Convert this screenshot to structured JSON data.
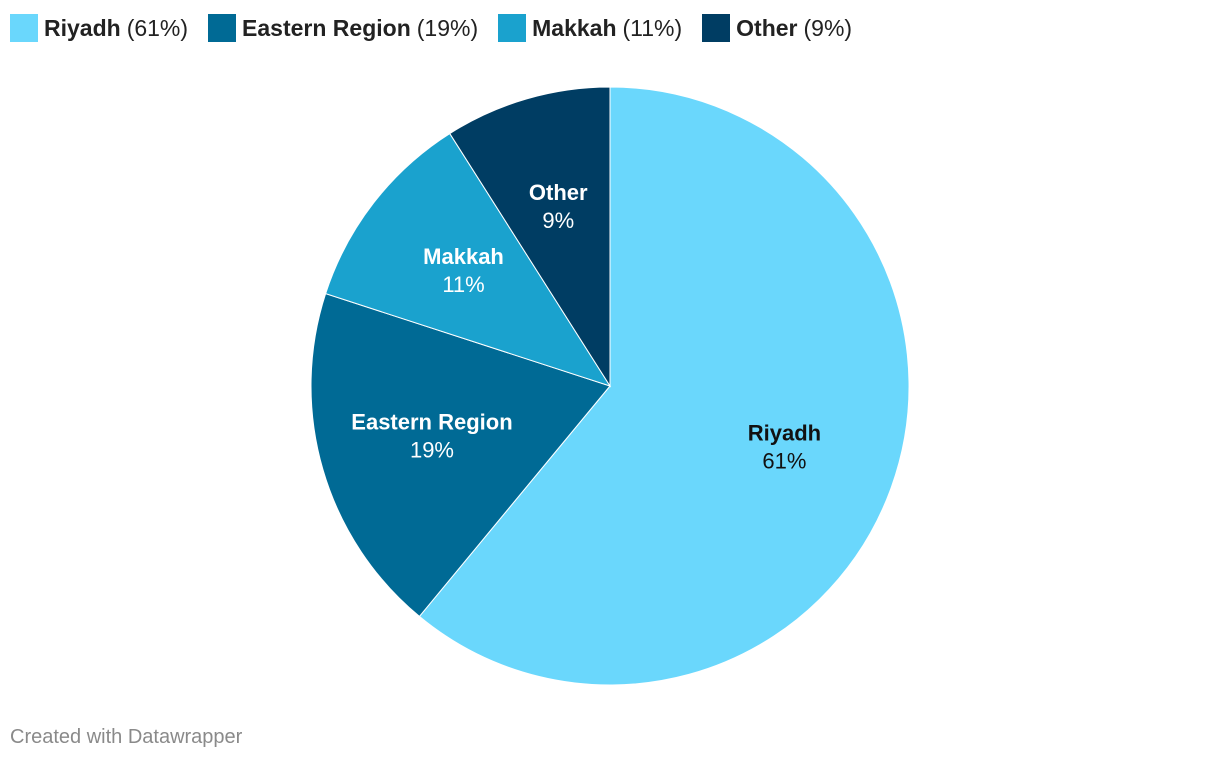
{
  "chart_data": {
    "type": "pie",
    "categories": [
      "Riyadh",
      "Eastern Region",
      "Makkah",
      "Other"
    ],
    "values": [
      61,
      19,
      11,
      9
    ],
    "value_labels": [
      "61%",
      "19%",
      "11%",
      "9%"
    ],
    "legend_labels": [
      "(61%)",
      "(19%)",
      "(11%)",
      "(9%)"
    ],
    "colors": [
      "#6ad7fc",
      "#006a95",
      "#1aa2ce",
      "#003d63"
    ],
    "label_colors": [
      "#111111",
      "#ffffff",
      "#ffffff",
      "#ffffff"
    ],
    "credit": "Created with Datawrapper"
  }
}
